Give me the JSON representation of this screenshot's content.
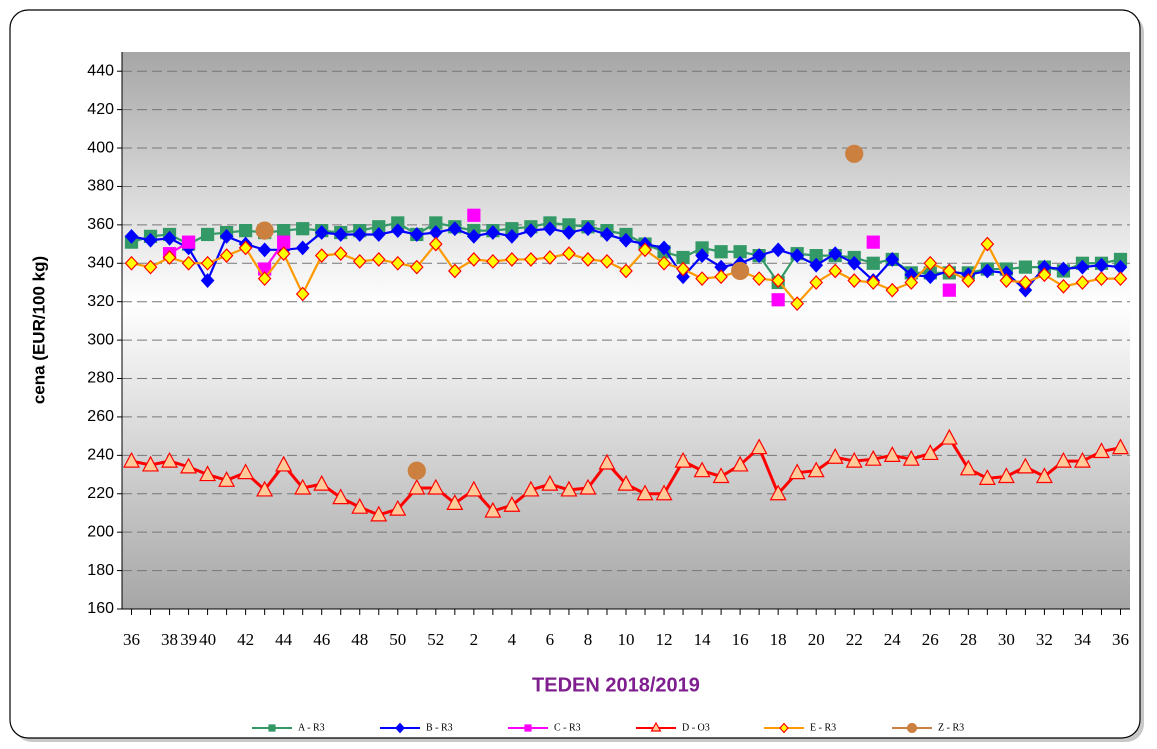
{
  "chart_data": {
    "type": "line",
    "x_label": "TEDEN 2018/2019",
    "y_label": "cena (EUR/100 kg)",
    "categories": [
      "36",
      null,
      "38",
      "39",
      "40",
      null,
      "42",
      null,
      "44",
      null,
      "46",
      null,
      "48",
      null,
      "50",
      null,
      "52",
      null,
      "2",
      null,
      "4",
      null,
      "6",
      null,
      "8",
      null,
      "10",
      null,
      "12",
      null,
      "14",
      null,
      "16",
      null,
      "18",
      null,
      "20",
      null,
      "22",
      null,
      "24",
      null,
      "26",
      null,
      "28",
      null,
      "30",
      null,
      "32",
      null,
      "34",
      null,
      "36"
    ],
    "ylim": [
      160,
      450
    ],
    "yticks": [
      160,
      180,
      200,
      220,
      240,
      260,
      280,
      300,
      320,
      340,
      360,
      380,
      400,
      420,
      440
    ],
    "grid": true,
    "legend": "bottom",
    "series": [
      {
        "name": "A - R3",
        "color": "#339966",
        "marker": "square",
        "marker_fill": "#339966",
        "values": [
          351,
          354,
          355,
          350,
          355,
          356,
          357,
          356,
          357,
          358,
          357,
          356,
          357,
          359,
          361,
          355,
          361,
          359,
          357,
          357,
          358,
          359,
          361,
          360,
          359,
          357,
          355,
          350,
          346,
          343,
          348,
          346,
          346,
          344,
          330,
          345,
          344,
          344,
          343,
          340,
          342,
          335,
          335,
          335,
          335,
          337,
          337,
          338,
          338,
          336,
          340,
          340,
          342
        ]
      },
      {
        "name": "B - R3",
        "color": "#0000ff",
        "marker": "diamond",
        "marker_fill": "#0000ff",
        "values": [
          354,
          352,
          353,
          348,
          331,
          354,
          350,
          347,
          347,
          348,
          356,
          355,
          355,
          355,
          357,
          355,
          356,
          358,
          354,
          356,
          354,
          357,
          358,
          356,
          358,
          355,
          352,
          350,
          348,
          333,
          344,
          338,
          340,
          344,
          347,
          344,
          339,
          345,
          340,
          331,
          342,
          334,
          333,
          336,
          334,
          336,
          335,
          326,
          338,
          337,
          338,
          339,
          338
        ]
      },
      {
        "name": "C - R3",
        "color": "#ff00ff",
        "marker": "square",
        "marker_fill": "#ff00ff",
        "values": [
          null,
          null,
          345,
          351,
          null,
          null,
          null,
          337,
          351,
          null,
          null,
          null,
          null,
          null,
          null,
          null,
          null,
          null,
          365,
          null,
          null,
          null,
          null,
          null,
          null,
          null,
          null,
          null,
          null,
          null,
          null,
          null,
          null,
          null,
          321,
          null,
          null,
          null,
          null,
          351,
          null,
          null,
          null,
          326,
          null,
          null,
          null,
          null,
          null,
          null,
          null,
          null,
          null
        ]
      },
      {
        "name": "D - O3",
        "color": "#ff0000",
        "marker": "triangle",
        "marker_fill": "#ffcc99",
        "values": [
          237,
          235,
          237,
          234,
          230,
          227,
          231,
          222,
          235,
          223,
          225,
          218,
          213,
          209,
          212,
          223,
          223,
          215,
          222,
          211,
          214,
          222,
          225,
          222,
          223,
          236,
          225,
          220,
          220,
          237,
          232,
          229,
          235,
          244,
          220,
          231,
          232,
          239,
          237,
          238,
          240,
          238,
          241,
          249,
          233,
          228,
          229,
          234,
          229,
          237,
          237,
          242,
          244
        ]
      },
      {
        "name": "E - R3",
        "color": "#ff9900",
        "marker": "diamond",
        "marker_fill": "#ffff00",
        "values": [
          340,
          338,
          343,
          340,
          340,
          344,
          348,
          332,
          345,
          324,
          344,
          345,
          341,
          342,
          340,
          338,
          350,
          336,
          342,
          341,
          342,
          342,
          343,
          345,
          342,
          341,
          336,
          347,
          340,
          337,
          332,
          333,
          336,
          332,
          331,
          319,
          330,
          336,
          331,
          330,
          326,
          330,
          340,
          336,
          331,
          350,
          331,
          330,
          334,
          328,
          330,
          332,
          332
        ]
      },
      {
        "name": "Z - R3",
        "color": "#cc8040",
        "marker": "circle",
        "marker_fill": "#cc8040",
        "values": [
          null,
          null,
          null,
          null,
          null,
          null,
          null,
          357,
          null,
          null,
          null,
          null,
          null,
          null,
          null,
          232,
          null,
          null,
          null,
          null,
          null,
          null,
          null,
          null,
          null,
          null,
          null,
          null,
          null,
          null,
          null,
          null,
          336,
          null,
          null,
          null,
          null,
          null,
          397,
          null,
          null,
          null,
          null,
          null,
          null,
          null,
          null,
          null,
          null,
          null,
          null,
          null,
          null
        ]
      }
    ]
  }
}
